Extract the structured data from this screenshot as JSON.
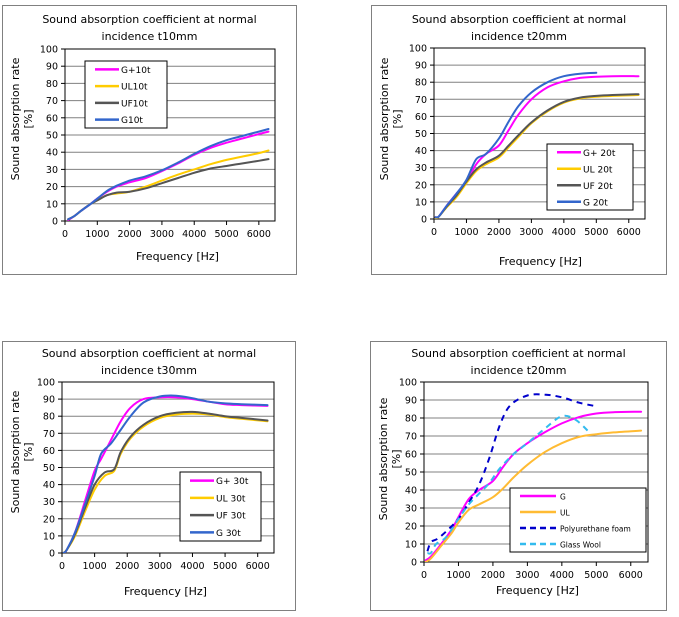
{
  "chart_data": [
    {
      "id": "c1",
      "type": "line",
      "title_line1": "Sound absorption coefficient at normal",
      "title_line2": "incidence   t10mm",
      "xlabel": "Frequency [Hz]",
      "ylabel_line1": "Sound absorption rate",
      "ylabel_line2": "[%]",
      "xlim": [
        0,
        6500
      ],
      "ylim": [
        0,
        100
      ],
      "xticks": [
        0,
        1000,
        2000,
        3000,
        4000,
        5000,
        6000
      ],
      "yticks": [
        0,
        10,
        20,
        30,
        40,
        50,
        60,
        70,
        80,
        90,
        100
      ],
      "grid": "horizontal",
      "legend_position": "top-left",
      "series": [
        {
          "name": "G+10t",
          "color": "#ff00ff",
          "dash": false,
          "x": [
            100,
            300,
            500,
            800,
            1000,
            1300,
            1600,
            2000,
            2500,
            3000,
            3500,
            4000,
            4500,
            5000,
            5500,
            6000,
            6300
          ],
          "y": [
            0.5,
            3,
            6,
            10,
            13,
            17,
            20,
            22.5,
            25,
            29,
            33.5,
            38.5,
            42.5,
            45.5,
            48,
            50.5,
            52
          ]
        },
        {
          "name": "UL10t",
          "color": "#ffcc00",
          "dash": false,
          "x": [
            100,
            300,
            500,
            800,
            1000,
            1300,
            1600,
            2000,
            2500,
            3000,
            3500,
            4000,
            4500,
            5000,
            5500,
            6000,
            6300
          ],
          "y": [
            1,
            3,
            6,
            10,
            12,
            15,
            16,
            17,
            20,
            23.5,
            27,
            30,
            33,
            35.5,
            37.5,
            39.5,
            41
          ]
        },
        {
          "name": "UF10t",
          "color": "#555555",
          "dash": false,
          "x": [
            100,
            300,
            500,
            800,
            1000,
            1300,
            1600,
            2000,
            2500,
            3000,
            3500,
            4000,
            4500,
            5000,
            5500,
            6000,
            6300
          ],
          "y": [
            1,
            3,
            6,
            10,
            12,
            15,
            16.5,
            17,
            19,
            22,
            25,
            28,
            30.5,
            32,
            33.5,
            35,
            36
          ]
        },
        {
          "name": "G10t",
          "color": "#3366cc",
          "dash": false,
          "x": [
            100,
            300,
            500,
            800,
            1000,
            1300,
            1600,
            2000,
            2500,
            3000,
            3500,
            4000,
            4500,
            5000,
            5500,
            6000,
            6300
          ],
          "y": [
            1,
            3,
            6,
            10,
            13,
            17.5,
            20.5,
            23.5,
            26,
            29.5,
            34,
            39,
            43.5,
            47,
            49.5,
            52,
            53.5
          ]
        }
      ]
    },
    {
      "id": "c2",
      "type": "line",
      "title_line1": "Sound absorption coefficient at normal",
      "title_line2": "incidence   t20mm",
      "xlabel": "Frequency [Hz]",
      "ylabel_line1": "Sound absorption rate",
      "ylabel_line2": "[%]",
      "xlim": [
        0,
        6500
      ],
      "ylim": [
        0,
        100
      ],
      "xticks": [
        0,
        1000,
        2000,
        3000,
        4000,
        5000,
        6000
      ],
      "yticks": [
        0,
        10,
        20,
        30,
        40,
        50,
        60,
        70,
        80,
        90,
        100
      ],
      "grid": "horizontal",
      "legend_position": "bottom-right",
      "series": [
        {
          "name": "G+ 20t",
          "color": "#ff00ff",
          "dash": false,
          "x": [
            50,
            150,
            400,
            700,
            1000,
            1300,
            1600,
            2000,
            2300,
            2600,
            3000,
            3500,
            4000,
            4500,
            5000,
            5500,
            6300
          ],
          "y": [
            1,
            1.5,
            8,
            15,
            22,
            32,
            38,
            43,
            52,
            61,
            70,
            77,
            80.5,
            82.5,
            83.2,
            83.5,
            83.5
          ]
        },
        {
          "name": "UL 20t",
          "color": "#ffcc00",
          "dash": false,
          "x": [
            50,
            150,
            400,
            700,
            1000,
            1300,
            1600,
            2000,
            2300,
            2600,
            3000,
            3500,
            4000,
            4500,
            5000,
            5500,
            6300
          ],
          "y": [
            0,
            1.5,
            7,
            13,
            21,
            28,
            32,
            36,
            42,
            48,
            56,
            63,
            68,
            70.5,
            71.5,
            72,
            72.5
          ]
        },
        {
          "name": "UF 20t",
          "color": "#555555",
          "dash": false,
          "x": [
            50,
            150,
            400,
            700,
            1000,
            1300,
            1600,
            2000,
            2300,
            2600,
            3000,
            3500,
            4000,
            4500,
            5000,
            5500,
            6300
          ],
          "y": [
            1,
            1.5,
            7.5,
            14,
            22,
            29,
            33,
            37,
            43,
            49,
            56.5,
            63.5,
            68.5,
            71,
            72,
            72.5,
            73
          ]
        },
        {
          "name": "G 20t",
          "color": "#3366cc",
          "dash": false,
          "x": [
            50,
            150,
            400,
            700,
            1000,
            1300,
            1600,
            2000,
            2300,
            2600,
            3000,
            3500,
            4000,
            4500,
            5000
          ],
          "y": [
            1,
            1.5,
            8,
            15,
            23,
            35,
            38,
            47,
            57,
            66,
            74,
            80,
            83.5,
            85,
            85.5
          ]
        }
      ]
    },
    {
      "id": "c3",
      "type": "line",
      "title_line1": "Sound absorption coefficient at normal",
      "title_line2": "incidence    t30mm",
      "xlabel": "Frequency [Hz]",
      "ylabel_line1": "Sound absorption rate",
      "ylabel_line2": "[%]",
      "xlim": [
        0,
        6500
      ],
      "ylim": [
        0,
        100
      ],
      "xticks": [
        0,
        1000,
        2000,
        3000,
        4000,
        5000,
        6000
      ],
      "yticks": [
        0,
        10,
        20,
        30,
        40,
        50,
        60,
        70,
        80,
        90,
        100
      ],
      "grid": "horizontal",
      "legend_position": "bottom-right",
      "series": [
        {
          "name": "G+ 30t",
          "color": "#ff00ff",
          "dash": false,
          "x": [
            50,
            150,
            400,
            700,
            1000,
            1200,
            1500,
            1800,
            2100,
            2500,
            3000,
            3500,
            4000,
            4500,
            5000,
            5500,
            6300
          ],
          "y": [
            0,
            2,
            12,
            30,
            48,
            55,
            66,
            77,
            85,
            90,
            91,
            91,
            90,
            88.5,
            87,
            86.5,
            86
          ]
        },
        {
          "name": "UL 30t",
          "color": "#ffcc00",
          "dash": false,
          "x": [
            50,
            150,
            400,
            700,
            1000,
            1300,
            1600,
            1800,
            2100,
            2500,
            3000,
            3500,
            4000,
            4500,
            5000,
            5500,
            6300
          ],
          "y": [
            0,
            2,
            10,
            24,
            37,
            45,
            48,
            58,
            67,
            74,
            79,
            81,
            81.5,
            81,
            79.5,
            78.5,
            77
          ]
        },
        {
          "name": "UF 30t",
          "color": "#555555",
          "dash": false,
          "x": [
            50,
            150,
            400,
            700,
            1000,
            1300,
            1600,
            1800,
            2100,
            2500,
            3000,
            3500,
            4000,
            4500,
            5000,
            5500,
            6300
          ],
          "y": [
            0,
            2,
            11,
            26,
            40,
            47,
            49,
            59,
            68,
            75,
            80,
            82,
            82.5,
            81.5,
            80,
            79,
            77.5
          ]
        },
        {
          "name": "G 30t",
          "color": "#3366cc",
          "dash": false,
          "x": [
            50,
            150,
            400,
            700,
            1000,
            1200,
            1500,
            1800,
            2100,
            2500,
            3000,
            3500,
            4000,
            4500,
            5000,
            5500,
            6300
          ],
          "y": [
            0,
            2,
            12,
            28,
            45,
            58,
            64,
            72,
            80,
            88,
            91.5,
            92,
            90.5,
            88.5,
            87.5,
            87,
            86.5
          ]
        }
      ]
    },
    {
      "id": "c4",
      "type": "line",
      "title_line1": "Sound absorption coefficient at normal",
      "title_line2": "incidence   t20mm",
      "xlabel": "Frequency [Hz]",
      "ylabel_line1": "Sound absorption rate",
      "ylabel_line2": "[%]",
      "xlim": [
        0,
        6500
      ],
      "ylim": [
        0,
        100
      ],
      "xticks": [
        0,
        1000,
        2000,
        3000,
        4000,
        5000,
        6000
      ],
      "yticks": [
        0,
        10,
        20,
        30,
        40,
        50,
        60,
        70,
        80,
        90,
        100
      ],
      "grid": "horizontal",
      "legend_position": "bottom-right",
      "series": [
        {
          "name": "G",
          "color": "#ff00ff",
          "dash": false,
          "x": [
            50,
            200,
            500,
            800,
            1000,
            1300,
            1600,
            2000,
            2300,
            2600,
            3000,
            3500,
            4000,
            4500,
            5000,
            5500,
            6300
          ],
          "y": [
            1,
            3,
            10,
            18,
            25,
            35,
            40,
            45,
            53,
            60,
            66,
            72,
            77,
            80.5,
            82.5,
            83.2,
            83.5
          ]
        },
        {
          "name": "UL",
          "color": "#ffbb33",
          "dash": false,
          "x": [
            50,
            200,
            500,
            800,
            1000,
            1300,
            1600,
            2000,
            2300,
            2600,
            3000,
            3500,
            4000,
            4500,
            5000,
            5500,
            6300
          ],
          "y": [
            0,
            2,
            9,
            16,
            22,
            29,
            32,
            36,
            41,
            47,
            54,
            61,
            66,
            69.5,
            71,
            72,
            73
          ]
        },
        {
          "name": "Polyurethane foam",
          "color": "#0000cc",
          "dash": true,
          "x": [
            100,
            200,
            400,
            700,
            1000,
            1300,
            1600,
            1900,
            2200,
            2500,
            3000,
            3500,
            4000,
            4500,
            5000
          ],
          "y": [
            6,
            11,
            13,
            18,
            24,
            33,
            43,
            58,
            76,
            87,
            92.5,
            93,
            91.5,
            88.5,
            86.5
          ]
        },
        {
          "name": "Glass Wool",
          "color": "#33bbee",
          "dash": true,
          "x": [
            100,
            200,
            350,
            600,
            800,
            1000,
            1300,
            1600,
            1900,
            2200,
            2600,
            3000,
            3500,
            4000,
            4400,
            4800
          ],
          "y": [
            5,
            5,
            10,
            13,
            18,
            24,
            32,
            38,
            44,
            52,
            60,
            66,
            74,
            81,
            79,
            72
          ]
        }
      ]
    }
  ]
}
